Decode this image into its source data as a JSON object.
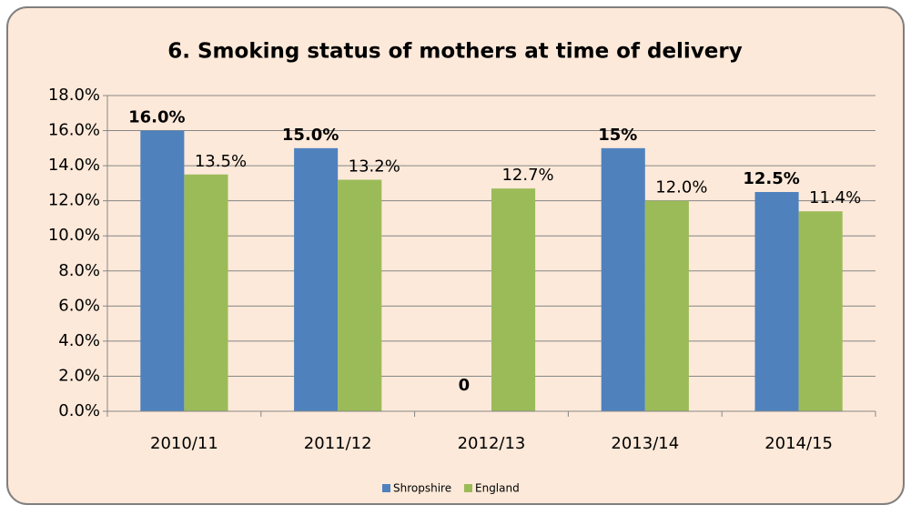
{
  "chart_data": {
    "type": "bar",
    "title": "6. Smoking status  of mothers at time of delivery",
    "categories": [
      "2010/11",
      "2011/12",
      "2012/13",
      "2013/14",
      "2014/15"
    ],
    "series": [
      {
        "name": "Shropshire",
        "color": "#4f81bd",
        "values": [
          16.0,
          15.0,
          0,
          15,
          12.5
        ],
        "value_labels": [
          "16.0%",
          "15.0%",
          "0",
          "15%",
          "12.5%"
        ]
      },
      {
        "name": "England",
        "color": "#9bbb59",
        "values": [
          13.5,
          13.2,
          12.7,
          12.0,
          11.4
        ],
        "value_labels": [
          "13.5%",
          "13.2%",
          "12.7%",
          "12.0%",
          "11.4%"
        ]
      }
    ],
    "ylim": [
      0,
      18
    ],
    "yticks": [
      {
        "value": 0,
        "label": "0.0%"
      },
      {
        "value": 2,
        "label": "2.0%"
      },
      {
        "value": 4,
        "label": "4.0%"
      },
      {
        "value": 6,
        "label": "6.0%"
      },
      {
        "value": 8,
        "label": "8.0%"
      },
      {
        "value": 10,
        "label": "10.0%"
      },
      {
        "value": 12,
        "label": "12.0%"
      },
      {
        "value": 14,
        "label": "14.0%"
      },
      {
        "value": 16,
        "label": "16.0%"
      },
      {
        "value": 18,
        "label": "18.0%"
      }
    ],
    "grid": true,
    "legend": "bottom"
  }
}
